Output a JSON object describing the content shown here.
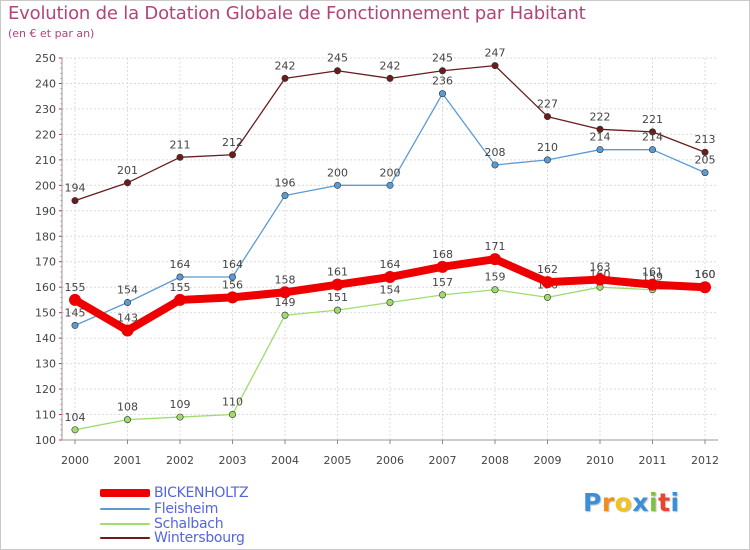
{
  "header": {
    "title": "Evolution de la Dotation Globale de Fonctionnement par Habitant",
    "subtitle": "(en € et par an)"
  },
  "chart_data": {
    "type": "line",
    "title": "Evolution de la Dotation Globale de Fonctionnement par Habitant",
    "ylabel": "(en € et par an)",
    "xlabel": "",
    "ylim": [
      100,
      250
    ],
    "yticks": [
      "100",
      "110",
      "120",
      "130",
      "140",
      "150",
      "160",
      "170",
      "180",
      "190",
      "200",
      "210",
      "220",
      "230",
      "240",
      "250"
    ],
    "categories": [
      "2000",
      "2001",
      "2002",
      "2003",
      "2004",
      "2005",
      "2006",
      "2007",
      "2008",
      "2009",
      "2010",
      "2011",
      "2012"
    ],
    "grid": true,
    "legend_position": "bottom-left",
    "series": [
      {
        "name": "Wintersbourg",
        "color": "#6b1c1c",
        "values": [
          194,
          201,
          211,
          212,
          242,
          245,
          242,
          245,
          247,
          227,
          222,
          221,
          213
        ]
      },
      {
        "name": "Fleisheim",
        "color": "#5b9bd5",
        "values": [
          145,
          154,
          164,
          164,
          196,
          200,
          200,
          236,
          208,
          210,
          214,
          214,
          205
        ]
      },
      {
        "name": "Schalbach",
        "color": "#9fdc6e",
        "values": [
          104,
          108,
          109,
          110,
          149,
          151,
          154,
          157,
          159,
          156,
          160,
          159,
          160
        ]
      },
      {
        "name": "BICKENHOLTZ",
        "color": "#ee0000",
        "values": [
          155,
          143,
          155,
          156,
          158,
          161,
          164,
          168,
          171,
          162,
          163,
          161,
          160
        ]
      }
    ]
  },
  "legend": {
    "items": [
      {
        "label": "BICKENHOLTZ",
        "color": "#ee0000"
      },
      {
        "label": "Fleisheim",
        "color": "#5b9bd5"
      },
      {
        "label": "Schalbach",
        "color": "#9fdc6e"
      },
      {
        "label": "Wintersbourg",
        "color": "#6b1c1c"
      }
    ]
  },
  "logo": {
    "letters": [
      "P",
      "r",
      "o",
      "x",
      "i",
      "t",
      "i"
    ],
    "colors": [
      "#3a8fd8",
      "#f28c1e",
      "#f2c21e",
      "#3a8fd8",
      "#7cc242",
      "#e8452c",
      "#3a8fd8"
    ]
  }
}
